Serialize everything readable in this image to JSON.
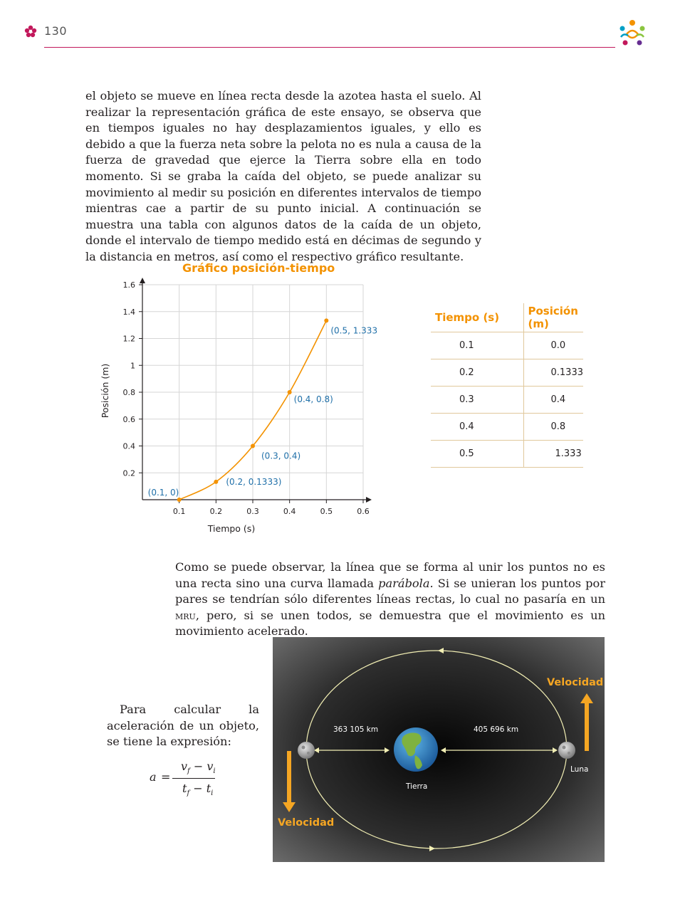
{
  "header": {
    "page_number": "130"
  },
  "paragraph1": "el objeto se mueve en línea recta desde la azotea hasta el suelo. Al realizar la representación gráfica de este ensayo, se observa que en tiempos iguales no hay desplazamientos iguales, y ello es debido a que la fuerza neta sobre la pelota no es nula a causa de la fuerza de gravedad que ejerce la Tierra sobre ella en todo momento. Si se graba la caída del objeto, se puede analizar su movimiento al medir su posición en diferentes intervalos de tiempo mientras cae a partir de su punto inicial. A continuación se muestra una tabla con algunos datos de la caída de un objeto, donde el intervalo de tiempo medido está en décimas de segundo y la distancia en metros, así como el respectivo gráfico resultante.",
  "paragraph2": {
    "before": "Como se puede observar, la línea que se forma al unir los puntos no es una recta sino una curva llamada ",
    "emph": "parábola.",
    "middle": " Si se unieran los puntos por pares se tendrían sólo diferentes líneas rectas, lo cual no pasaría en un ",
    "abbr": "mru",
    "after": ", pero, si se unen todos, se demuestra que el movimiento es un movimiento acelerado."
  },
  "paragraph3": "Para calcular la aceleración de un objeto, se tiene la expresión:",
  "formula": {
    "lhs": "a",
    "equals": "=",
    "num_a": "v",
    "num_a_sub": "f",
    "minus": "−",
    "num_b": "v",
    "num_b_sub": "i",
    "den_a": "t",
    "den_a_sub": "f",
    "den_b": "t",
    "den_b_sub": "i"
  },
  "chart_data": {
    "type": "line",
    "title": "Gráfico posición-tiempo",
    "xlabel": "Tiempo (s)",
    "ylabel": "Posición (m)",
    "x": [
      0.1,
      0.2,
      0.3,
      0.4,
      0.5
    ],
    "y": [
      0,
      0.1333,
      0.4,
      0.8,
      1.333
    ],
    "point_labels": [
      "(0.1, 0)",
      "(0.2, 0.1333)",
      "(0.3, 0.4)",
      "(0.4, 0.8)",
      "(0.5, 1.333)"
    ],
    "xticks": [
      "0.1",
      "0.2",
      "0.3",
      "0.4",
      "0.5",
      "0.6"
    ],
    "yticks": [
      "0.2",
      "0.4",
      "0.6",
      "0.8",
      "1",
      "1.2",
      "1.4",
      "1.6"
    ],
    "xlim": [
      0,
      0.6
    ],
    "ylim": [
      0,
      1.6
    ],
    "grid": true,
    "line_color": "#f39200",
    "label_color": "#1f6fa8"
  },
  "table": {
    "headers": [
      "Tiempo (s)",
      "Posición (m)"
    ],
    "rows": [
      [
        "0.1",
        "0.0"
      ],
      [
        "0.2",
        "0.1333"
      ],
      [
        "0.3",
        "0.4"
      ],
      [
        "0.4",
        "0.8"
      ],
      [
        "0.5",
        "1.333"
      ]
    ]
  },
  "orbit": {
    "distance_left": "363 105 km",
    "distance_right": "405 696 km",
    "earth_label": "Tierra",
    "moon_label": "Luna",
    "velocity_top": "Velocidad",
    "velocity_bottom": "Velocidad"
  },
  "colors": {
    "accent": "#f39200",
    "header_rule": "#c2185b",
    "point_label": "#1f6fa8"
  }
}
